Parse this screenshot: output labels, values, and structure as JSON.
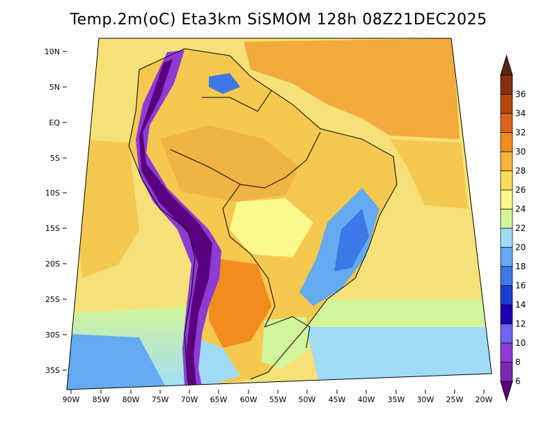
{
  "title": "Temp.2m(oC) Eta3km SiSMOM 128h 08Z21DEC2025",
  "map": {
    "variable": "2 m temperature",
    "units": "oC",
    "lat_labels": [
      "10N",
      "5N",
      "EQ",
      "5S",
      "10S",
      "15S",
      "20S",
      "25S",
      "30S",
      "35S"
    ],
    "lon_labels": [
      "90W",
      "85W",
      "80W",
      "75W",
      "70W",
      "65W",
      "60W",
      "55W",
      "50W",
      "45W",
      "40W",
      "35W",
      "30W",
      "25W",
      "20W"
    ]
  },
  "colorbar": {
    "levels": [
      "6",
      "8",
      "10",
      "12",
      "14",
      "16",
      "18",
      "20",
      "22",
      "24",
      "26",
      "28",
      "30",
      "32",
      "34",
      "36"
    ],
    "colors": [
      "#5a007f",
      "#7a28b4",
      "#8c3cd2",
      "#6e64f0",
      "#1e00b4",
      "#1e3cd2",
      "#3c78e6",
      "#64aaf0",
      "#a0dcf8",
      "#d2f59b",
      "#fafa8c",
      "#fadc5a",
      "#f5b43c",
      "#f08c1e",
      "#dc641e",
      "#b4460f",
      "#823210",
      "#5a2810"
    ]
  },
  "colors": {
    "ocean_warm": "#f5e178",
    "ocean_hot": "#f2aa3c",
    "land_mid": "#f5c850",
    "cold_south": "#a0dcf8",
    "andes": "#5a007f"
  }
}
